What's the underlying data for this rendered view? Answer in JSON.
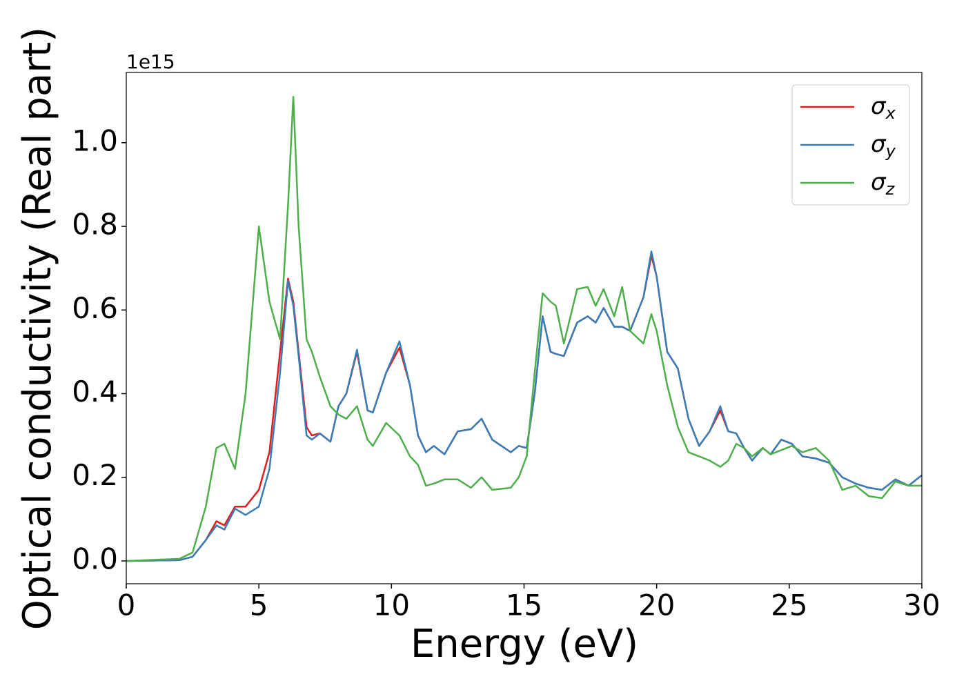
{
  "chart_data": {
    "type": "line",
    "x_label": "Energy (eV)",
    "y_label": "Optical conductivity (Real part)",
    "y_offset_label": "1e15",
    "x": [
      0,
      2,
      2.5,
      3,
      3.4,
      3.7,
      4.1,
      4.5,
      5,
      5.4,
      5.8,
      6.1,
      6.3,
      6.5,
      6.8,
      7,
      7.3,
      7.7,
      8,
      8.3,
      8.7,
      9.1,
      9.3,
      9.8,
      10.3,
      10.7,
      11,
      11.3,
      11.6,
      12,
      12.5,
      13,
      13.4,
      13.8,
      14.5,
      14.8,
      15.1,
      15.4,
      15.7,
      16,
      16.2,
      16.5,
      17,
      17.4,
      17.7,
      18,
      18.4,
      18.7,
      19,
      19.5,
      19.8,
      20,
      20.4,
      20.8,
      21.2,
      21.6,
      22,
      22.4,
      22.7,
      23,
      23.3,
      23.6,
      24,
      24.3,
      24.7,
      25.1,
      25.5,
      26,
      26.5,
      27,
      27.5,
      28,
      28.5,
      29,
      29.5,
      30
    ],
    "series": [
      {
        "name": "σx",
        "color": "#e41a1c",
        "values": [
          0,
          0.002,
          0.01,
          0.05,
          0.095,
          0.085,
          0.13,
          0.13,
          0.17,
          0.26,
          0.5,
          0.675,
          0.62,
          0.5,
          0.32,
          0.3,
          0.305,
          0.285,
          0.37,
          0.4,
          0.5,
          0.36,
          0.355,
          0.45,
          0.51,
          0.42,
          0.3,
          0.26,
          0.275,
          0.255,
          0.31,
          0.315,
          0.34,
          0.29,
          0.26,
          0.275,
          0.27,
          0.4,
          0.585,
          0.5,
          0.495,
          0.49,
          0.57,
          0.585,
          0.57,
          0.605,
          0.56,
          0.56,
          0.55,
          0.63,
          0.73,
          0.68,
          0.5,
          0.46,
          0.34,
          0.275,
          0.31,
          0.36,
          0.31,
          0.305,
          0.27,
          0.24,
          0.27,
          0.255,
          0.29,
          0.28,
          0.25,
          0.245,
          0.235,
          0.2,
          0.185,
          0.175,
          0.17,
          0.195,
          0.18,
          0.205
        ]
      },
      {
        "name": "σy",
        "color": "#377eb8",
        "values": [
          0,
          0.002,
          0.01,
          0.05,
          0.085,
          0.075,
          0.125,
          0.11,
          0.13,
          0.22,
          0.45,
          0.67,
          0.61,
          0.49,
          0.3,
          0.29,
          0.305,
          0.285,
          0.37,
          0.4,
          0.505,
          0.36,
          0.355,
          0.45,
          0.525,
          0.42,
          0.3,
          0.26,
          0.275,
          0.255,
          0.31,
          0.315,
          0.34,
          0.29,
          0.26,
          0.275,
          0.27,
          0.4,
          0.585,
          0.5,
          0.495,
          0.49,
          0.57,
          0.585,
          0.57,
          0.605,
          0.56,
          0.56,
          0.55,
          0.63,
          0.74,
          0.68,
          0.5,
          0.46,
          0.34,
          0.275,
          0.31,
          0.37,
          0.31,
          0.305,
          0.27,
          0.24,
          0.27,
          0.255,
          0.29,
          0.28,
          0.25,
          0.245,
          0.235,
          0.2,
          0.185,
          0.175,
          0.17,
          0.195,
          0.18,
          0.205
        ]
      },
      {
        "name": "σz",
        "color": "#4daf4a",
        "values": [
          0,
          0.005,
          0.02,
          0.13,
          0.27,
          0.28,
          0.22,
          0.4,
          0.8,
          0.62,
          0.53,
          0.85,
          1.11,
          0.8,
          0.53,
          0.5,
          0.44,
          0.37,
          0.35,
          0.34,
          0.37,
          0.29,
          0.275,
          0.33,
          0.3,
          0.25,
          0.23,
          0.18,
          0.185,
          0.195,
          0.195,
          0.175,
          0.2,
          0.17,
          0.175,
          0.2,
          0.25,
          0.45,
          0.64,
          0.62,
          0.61,
          0.52,
          0.65,
          0.655,
          0.61,
          0.65,
          0.585,
          0.655,
          0.55,
          0.52,
          0.59,
          0.55,
          0.42,
          0.32,
          0.26,
          0.25,
          0.24,
          0.225,
          0.24,
          0.28,
          0.27,
          0.25,
          0.27,
          0.255,
          0.265,
          0.275,
          0.26,
          0.27,
          0.24,
          0.17,
          0.18,
          0.155,
          0.15,
          0.19,
          0.18,
          0.18
        ]
      }
    ],
    "xlim": [
      0,
      30
    ],
    "xticks": [
      0,
      5,
      10,
      15,
      20,
      25,
      30
    ],
    "ylim": [
      -0.0545,
      1.168
    ],
    "yticks": [
      {
        "value": 0,
        "label": "0.0"
      },
      0.2,
      0.4,
      0.6,
      0.8,
      {
        "value": 1,
        "label": "1.0"
      }
    ],
    "legend": "upper right"
  }
}
